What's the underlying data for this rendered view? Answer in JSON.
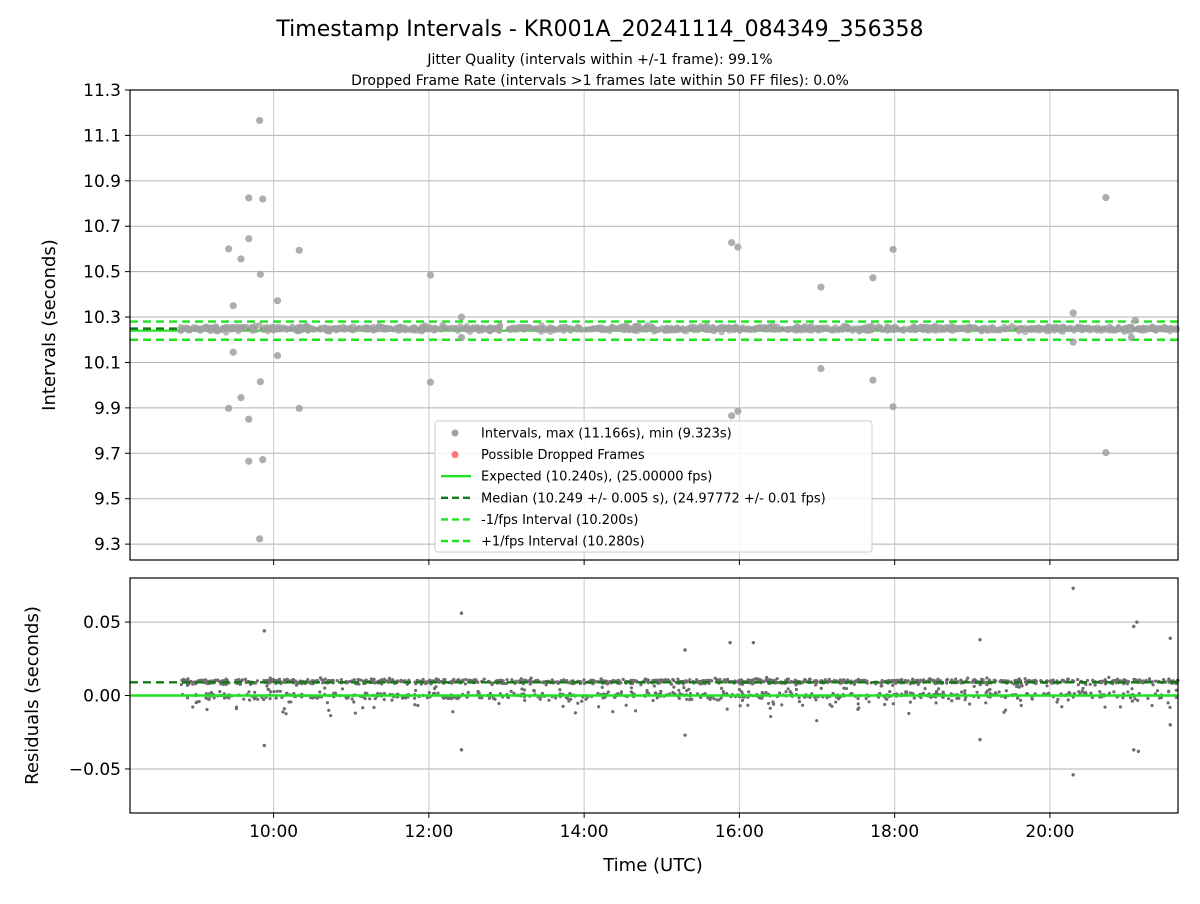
{
  "title": "Timestamp Intervals - KR001A_20241114_084349_356358",
  "subtitle_line1": "Jitter Quality (intervals within +/-1 frame): 99.1%",
  "subtitle_line2": "Dropped Frame Rate (intervals >1 frames late within 50 FF files): 0.0%",
  "colors": {
    "intervals": "#a0a0a0",
    "dropped": "#ff4040",
    "expected": "#22e022",
    "median": "#127a12",
    "fps_band": "#22e022",
    "residual_points": "#6e6e6e",
    "grid": "#b0b0b0"
  },
  "chart_data": [
    {
      "type": "scatter",
      "name": "intervals-panel",
      "ylabel": "Intervals (seconds)",
      "xlabel": "",
      "x_unit": "hours (UTC)",
      "xlim": [
        8.15,
        21.65
      ],
      "ylim": [
        9.23,
        11.3
      ],
      "yticks": [
        9.3,
        9.5,
        9.7,
        9.9,
        10.1,
        10.3,
        10.5,
        10.7,
        10.9,
        11.1,
        11.3
      ],
      "ytick_labels": [
        "9.3",
        "9.5",
        "9.7",
        "9.9",
        "10.1",
        "10.3",
        "10.5",
        "10.7",
        "10.9",
        "11.1",
        "11.3"
      ],
      "xticks": [
        10,
        12,
        14,
        16,
        18,
        20
      ],
      "xtick_labels": [
        "10:00",
        "12:00",
        "14:00",
        "16:00",
        "18:00",
        "20:00"
      ],
      "grid": true,
      "legend_position": "lower-center",
      "reference_lines": {
        "expected": 10.24,
        "median": 10.249,
        "minus_1_fps": 10.2,
        "plus_1_fps": 10.28
      },
      "data_range_x": [
        8.8,
        21.65
      ],
      "series": [
        {
          "name": "Intervals, max (11.166s), min (9.323s)",
          "points": [
            [
              9.82,
              11.166
            ],
            [
              9.68,
              10.825
            ],
            [
              9.86,
              10.82
            ],
            [
              9.68,
              10.645
            ],
            [
              9.42,
              10.6
            ],
            [
              9.58,
              10.556
            ],
            [
              9.83,
              10.488
            ],
            [
              9.48,
              10.35
            ],
            [
              10.05,
              10.372
            ],
            [
              10.33,
              10.594
            ],
            [
              9.48,
              10.145
            ],
            [
              10.05,
              10.13
            ],
            [
              9.83,
              10.015
            ],
            [
              9.42,
              9.898
            ],
            [
              9.58,
              9.945
            ],
            [
              9.68,
              9.85
            ],
            [
              10.33,
              9.898
            ],
            [
              9.68,
              9.665
            ],
            [
              9.86,
              9.672
            ],
            [
              9.82,
              9.323
            ],
            [
              12.02,
              10.485
            ],
            [
              12.02,
              10.013
            ],
            [
              12.42,
              10.3
            ],
            [
              12.42,
              10.21
            ],
            [
              15.9,
              10.628
            ],
            [
              15.98,
              10.608
            ],
            [
              15.9,
              9.865
            ],
            [
              15.98,
              9.885
            ],
            [
              17.05,
              10.432
            ],
            [
              17.05,
              10.073
            ],
            [
              17.72,
              10.473
            ],
            [
              17.72,
              10.022
            ],
            [
              17.98,
              10.598
            ],
            [
              17.98,
              9.905
            ],
            [
              20.3,
              10.318
            ],
            [
              20.3,
              10.19
            ],
            [
              20.72,
              10.826
            ],
            [
              20.72,
              9.703
            ],
            [
              21.05,
              10.21
            ],
            [
              21.1,
              10.285
            ]
          ]
        },
        {
          "name": "Possible Dropped Frames",
          "points": []
        }
      ],
      "legend": [
        {
          "label": "Intervals, max (11.166s), min (9.323s)",
          "kind": "dot-grey"
        },
        {
          "label": "Possible Dropped Frames",
          "kind": "dot-red"
        },
        {
          "label": "Expected (10.240s), (25.00000 fps)",
          "kind": "line-expected"
        },
        {
          "label": "Median (10.249 +/- 0.005 s), (24.97772 +/- 0.01 fps)",
          "kind": "line-median"
        },
        {
          "label": "-1/fps Interval (10.200s)",
          "kind": "line-band"
        },
        {
          "label": "+1/fps Interval (10.280s)",
          "kind": "line-band"
        }
      ]
    },
    {
      "type": "scatter",
      "name": "residuals-panel",
      "ylabel": "Residuals (seconds)",
      "xlabel": "Time (UTC)",
      "xlim": [
        8.15,
        21.65
      ],
      "ylim": [
        -0.08,
        0.08
      ],
      "yticks": [
        -0.05,
        0.0,
        0.05
      ],
      "ytick_labels": [
        "−0.05",
        "0.00",
        "0.05"
      ],
      "xticks": [
        10,
        12,
        14,
        16,
        18,
        20
      ],
      "xtick_labels": [
        "10:00",
        "12:00",
        "14:00",
        "16:00",
        "18:00",
        "20:00"
      ],
      "grid": true,
      "reference_lines": {
        "expected": 0.0,
        "median": 0.009
      },
      "notable_points": [
        [
          9.88,
          0.044
        ],
        [
          9.88,
          -0.034
        ],
        [
          12.42,
          0.056
        ],
        [
          12.42,
          -0.037
        ],
        [
          15.88,
          0.036
        ],
        [
          16.18,
          0.036
        ],
        [
          19.1,
          0.038
        ],
        [
          19.1,
          -0.03
        ],
        [
          20.3,
          0.073
        ],
        [
          20.3,
          -0.054
        ],
        [
          21.08,
          0.047
        ],
        [
          21.12,
          0.05
        ],
        [
          21.08,
          -0.037
        ],
        [
          21.14,
          -0.038
        ],
        [
          21.55,
          0.039
        ],
        [
          21.55,
          -0.02
        ],
        [
          15.3,
          -0.027
        ],
        [
          15.3,
          0.031
        ]
      ]
    }
  ]
}
